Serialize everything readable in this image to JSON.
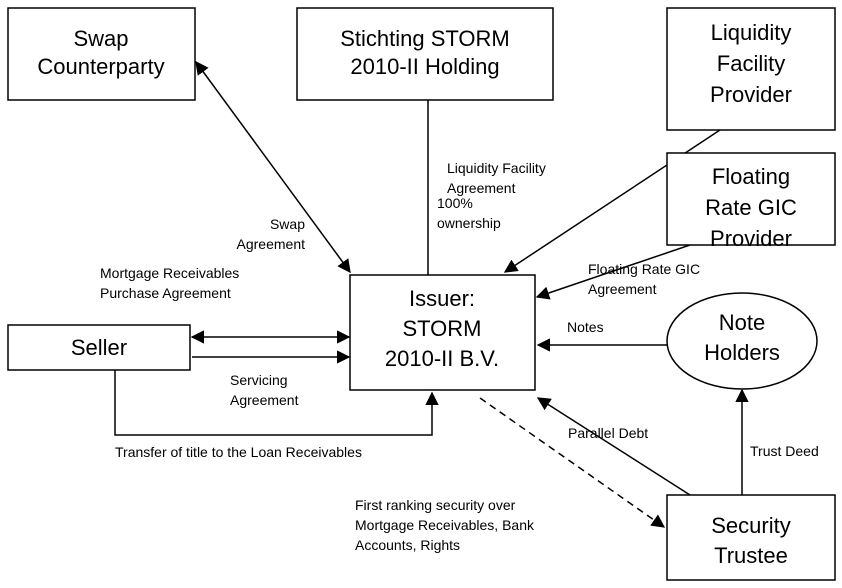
{
  "nodes": [
    {
      "id": "swap",
      "lines": [
        "Swap",
        "Counterparty"
      ]
    },
    {
      "id": "stichting",
      "lines": [
        "Stichting STORM",
        "2010-II Holding"
      ]
    },
    {
      "id": "liquidity",
      "lines": [
        "Liquidity",
        "Facility",
        "Provider"
      ]
    },
    {
      "id": "gic",
      "lines": [
        "Floating",
        "Rate GIC",
        "Provider"
      ]
    },
    {
      "id": "issuer",
      "lines": [
        "Issuer:",
        "STORM",
        "2010-II B.V."
      ]
    },
    {
      "id": "seller",
      "lines": [
        "Seller"
      ]
    },
    {
      "id": "noteholders",
      "lines": [
        "Note",
        "Holders"
      ]
    },
    {
      "id": "trustee",
      "lines": [
        "Security",
        "Trustee"
      ]
    }
  ],
  "edge_labels": [
    {
      "lines": [
        "Swap",
        "Agreement"
      ]
    },
    {
      "lines": [
        "Liquidity Facility",
        "Agreement"
      ]
    },
    {
      "lines": [
        "100%",
        "ownership"
      ]
    },
    {
      "lines": [
        "Mortgage Receivables",
        "Purchase Agreement"
      ]
    },
    {
      "lines": [
        "Floating Rate GIC",
        "Agreement"
      ]
    },
    {
      "lines": [
        "Notes"
      ]
    },
    {
      "lines": [
        "Servicing",
        "Agreement"
      ]
    },
    {
      "lines": [
        "Transfer of title to the Loan Receivables"
      ]
    },
    {
      "lines": [
        "Parallel Debt"
      ]
    },
    {
      "lines": [
        "Trust Deed"
      ]
    },
    {
      "lines": [
        "First ranking security over",
        "Mortgage Receivables, Bank",
        "Accounts, Rights"
      ]
    }
  ]
}
